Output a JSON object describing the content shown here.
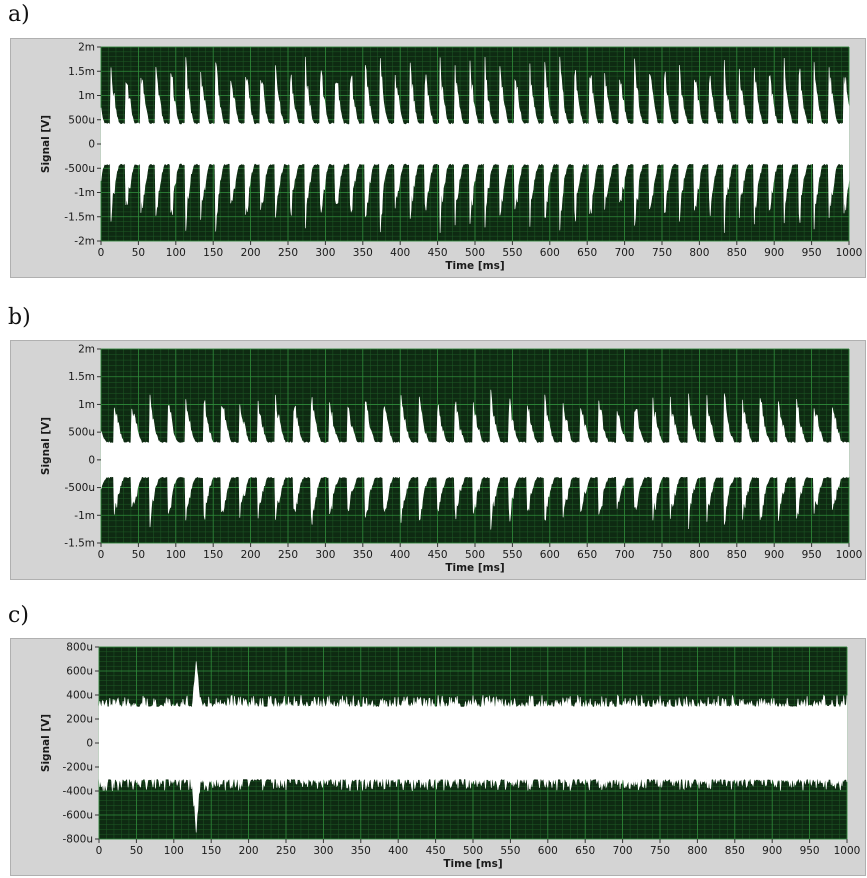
{
  "panels": [
    {
      "label": "a)"
    },
    {
      "label": "b)"
    },
    {
      "label": "c)"
    }
  ],
  "colors": {
    "plot_background": "#0e2a12",
    "grid": "#2f8a3a",
    "signal": "#ffffff",
    "frame": "#d4d4d4"
  },
  "chart_data": [
    {
      "type": "line",
      "xlabel": "Time [ms]",
      "ylabel": "Signal [V]",
      "xlim": [
        0,
        1000
      ],
      "ylim": [
        -0.002,
        0.002
      ],
      "x_ticks": [
        "0",
        "50",
        "100",
        "150",
        "200",
        "250",
        "300",
        "350",
        "400",
        "450",
        "500",
        "550",
        "600",
        "650",
        "700",
        "750",
        "800",
        "850",
        "900",
        "950",
        "1000"
      ],
      "y_tick_values": [
        0.002,
        0.0015,
        0.001,
        0.0005,
        0,
        -0.0005,
        -0.001,
        -0.0015,
        -0.002
      ],
      "y_ticks": [
        "2m",
        "1.5m",
        "1m",
        "500u",
        "0",
        "-500u",
        "-1m",
        "-1.5m",
        "-2m"
      ],
      "grid": true,
      "series": [
        {
          "envelope": "spiky bursts",
          "baseline_amplitude": 0.0004,
          "peak_amplitude": 0.0016,
          "burst_period_ms": 20,
          "burst_decay_ms": 12,
          "max_peak_amplitude": 0.0019
        }
      ]
    },
    {
      "type": "line",
      "xlabel": "Time [ms]",
      "ylabel": "Signal [V]",
      "xlim": [
        0,
        1000
      ],
      "ylim": [
        -0.0015,
        0.002
      ],
      "x_ticks": [
        "0",
        "50",
        "100",
        "150",
        "200",
        "250",
        "300",
        "350",
        "400",
        "450",
        "500",
        "550",
        "600",
        "650",
        "700",
        "750",
        "800",
        "850",
        "900",
        "950",
        "1000"
      ],
      "y_tick_values": [
        0.002,
        0.0015,
        0.001,
        0.0005,
        0,
        -0.0005,
        -0.001,
        -0.0015
      ],
      "y_ticks": [
        "2m",
        "1.5m",
        "1m",
        "500u",
        "0",
        "-500u",
        "-1m",
        "-1.5m"
      ],
      "grid": true,
      "series": [
        {
          "envelope": "spiky bursts",
          "baseline_amplitude": 0.0003,
          "peak_amplitude": 0.0011,
          "burst_period_ms": 24,
          "burst_decay_ms": 14,
          "max_peak_amplitude": 0.0016
        }
      ]
    },
    {
      "type": "line",
      "xlabel": "Time [ms]",
      "ylabel": "Signal [V]",
      "xlim": [
        0,
        1000
      ],
      "ylim": [
        -0.0008,
        0.0008
      ],
      "x_ticks": [
        "0",
        "50",
        "100",
        "150",
        "200",
        "250",
        "300",
        "350",
        "400",
        "450",
        "500",
        "550",
        "600",
        "650",
        "700",
        "750",
        "800",
        "850",
        "900",
        "950",
        "1000"
      ],
      "y_tick_values": [
        0.0008,
        0.0006,
        0.0004,
        0.0002,
        0,
        -0.0002,
        -0.0004,
        -0.0006,
        -0.0008
      ],
      "y_ticks": [
        "800u",
        "600u",
        "400u",
        "200u",
        "0",
        "-200u",
        "-400u",
        "-600u",
        "-800u"
      ],
      "grid": true,
      "series": [
        {
          "envelope": "noise band",
          "baseline_amplitude": 0.0003,
          "peak_amplitude": 0.0004,
          "max_peak_amplitude": 0.00068,
          "max_peak_at_ms": 130
        }
      ]
    }
  ]
}
